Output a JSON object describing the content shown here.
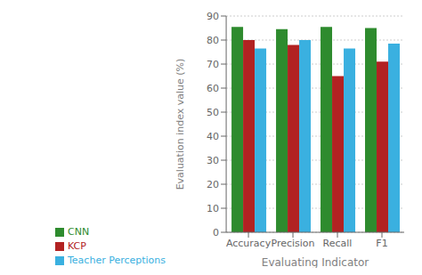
{
  "chart_data": {
    "type": "bar",
    "categories": [
      "Accuracy",
      "Precision",
      "Recall",
      "F1"
    ],
    "series": [
      {
        "name": "CNN",
        "color": "#2e8b2e",
        "values": [
          85.5,
          84.5,
          85.5,
          85.0
        ]
      },
      {
        "name": "KCP",
        "color": "#b22222",
        "values": [
          80.0,
          78.0,
          65.0,
          71.0
        ]
      },
      {
        "name": "Teacher Perceptions",
        "color": "#3ab0e0",
        "values": [
          76.5,
          80.0,
          76.5,
          78.5
        ]
      }
    ],
    "xlabel": "Evaluating Indicator",
    "ylabel": "Evaluation index value (%)",
    "ylim": [
      0,
      90
    ],
    "yticks": [
      0,
      10,
      20,
      30,
      40,
      50,
      60,
      70,
      80,
      90
    ],
    "grid": true,
    "legend": "bottom"
  }
}
